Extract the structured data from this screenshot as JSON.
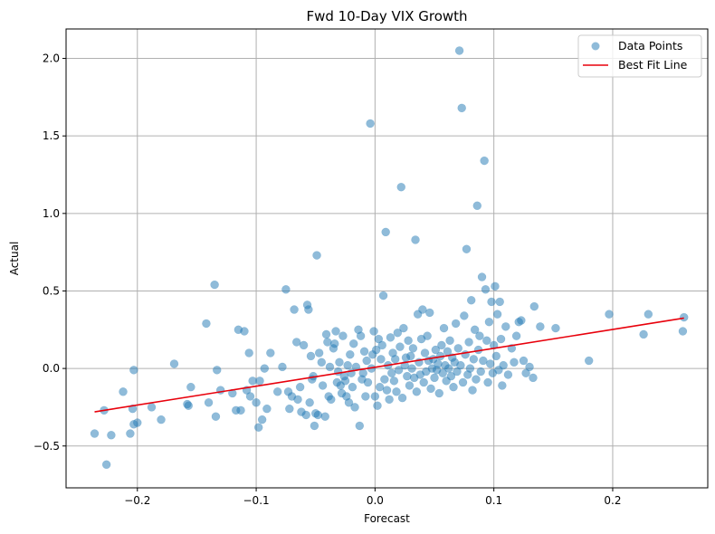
{
  "chart_data": {
    "type": "scatter",
    "title": "Fwd 10-Day VIX Growth",
    "xlabel": "Forecast",
    "ylabel": "Actual",
    "xlim": [
      -0.26,
      0.28
    ],
    "ylim": [
      -0.77,
      2.19
    ],
    "xticks": [
      -0.2,
      -0.1,
      0.0,
      0.1,
      0.2
    ],
    "xtick_labels": [
      "−0.2",
      "−0.1",
      "0.0",
      "0.1",
      "0.2"
    ],
    "yticks": [
      -0.5,
      0.0,
      0.5,
      1.0,
      1.5,
      2.0
    ],
    "ytick_labels": [
      "−0.5",
      "0.0",
      "0.5",
      "1.0",
      "1.5",
      "2.0"
    ],
    "grid": true,
    "legend_position": "top-right",
    "series": [
      {
        "name": "Data Points",
        "kind": "scatter",
        "color": "#1f77b4",
        "opacity": 0.5,
        "points": [
          [
            -0.236,
            -0.42
          ],
          [
            -0.228,
            -0.27
          ],
          [
            -0.226,
            -0.62
          ],
          [
            -0.222,
            -0.43
          ],
          [
            -0.212,
            -0.15
          ],
          [
            -0.206,
            -0.42
          ],
          [
            -0.204,
            -0.26
          ],
          [
            -0.203,
            -0.01
          ],
          [
            -0.203,
            -0.36
          ],
          [
            -0.2,
            -0.35
          ],
          [
            -0.188,
            -0.25
          ],
          [
            -0.18,
            -0.33
          ],
          [
            -0.169,
            0.03
          ],
          [
            -0.158,
            -0.23
          ],
          [
            -0.157,
            -0.24
          ],
          [
            -0.155,
            -0.12
          ],
          [
            -0.142,
            0.29
          ],
          [
            -0.14,
            -0.22
          ],
          [
            -0.135,
            0.54
          ],
          [
            -0.134,
            -0.31
          ],
          [
            -0.133,
            -0.01
          ],
          [
            -0.13,
            -0.14
          ],
          [
            -0.12,
            -0.16
          ],
          [
            -0.117,
            -0.27
          ],
          [
            -0.115,
            0.25
          ],
          [
            -0.113,
            -0.27
          ],
          [
            -0.11,
            0.24
          ],
          [
            -0.108,
            -0.14
          ],
          [
            -0.106,
            0.1
          ],
          [
            -0.105,
            -0.18
          ],
          [
            -0.103,
            -0.08
          ],
          [
            -0.1,
            -0.22
          ],
          [
            -0.098,
            -0.38
          ],
          [
            -0.097,
            -0.08
          ],
          [
            -0.095,
            -0.33
          ],
          [
            -0.093,
            0.0
          ],
          [
            -0.091,
            -0.26
          ],
          [
            -0.088,
            0.1
          ],
          [
            -0.082,
            -0.15
          ],
          [
            -0.078,
            0.01
          ],
          [
            -0.075,
            0.51
          ],
          [
            -0.073,
            -0.15
          ],
          [
            -0.072,
            -0.26
          ],
          [
            -0.07,
            -0.18
          ],
          [
            -0.068,
            0.38
          ],
          [
            -0.066,
            0.17
          ],
          [
            -0.065,
            -0.2
          ],
          [
            -0.063,
            -0.12
          ],
          [
            -0.062,
            -0.28
          ],
          [
            -0.06,
            0.15
          ],
          [
            -0.058,
            -0.3
          ],
          [
            -0.057,
            0.41
          ],
          [
            -0.056,
            0.38
          ],
          [
            -0.055,
            -0.22
          ],
          [
            -0.054,
            0.08
          ],
          [
            -0.053,
            -0.07
          ],
          [
            -0.052,
            -0.05
          ],
          [
            -0.051,
            -0.37
          ],
          [
            -0.05,
            -0.29
          ],
          [
            -0.049,
            0.73
          ],
          [
            -0.048,
            -0.3
          ],
          [
            -0.047,
            0.1
          ],
          [
            -0.045,
            0.04
          ],
          [
            -0.044,
            -0.11
          ],
          [
            -0.042,
            -0.31
          ],
          [
            -0.041,
            0.22
          ],
          [
            -0.04,
            0.17
          ],
          [
            -0.039,
            -0.18
          ],
          [
            -0.038,
            0.01
          ],
          [
            -0.037,
            -0.2
          ],
          [
            -0.035,
            0.13
          ],
          [
            -0.034,
            0.16
          ],
          [
            -0.033,
            0.24
          ],
          [
            -0.032,
            -0.09
          ],
          [
            -0.031,
            -0.02
          ],
          [
            -0.03,
            0.04
          ],
          [
            -0.029,
            -0.11
          ],
          [
            -0.028,
            -0.16
          ],
          [
            -0.027,
            0.21
          ],
          [
            -0.026,
            -0.05
          ],
          [
            -0.025,
            -0.08
          ],
          [
            -0.024,
            -0.18
          ],
          [
            -0.023,
            0.02
          ],
          [
            -0.022,
            -0.22
          ],
          [
            -0.021,
            0.09
          ],
          [
            -0.02,
            -0.03
          ],
          [
            -0.019,
            -0.12
          ],
          [
            -0.018,
            0.16
          ],
          [
            -0.017,
            -0.25
          ],
          [
            -0.016,
            0.01
          ],
          [
            -0.014,
            0.25
          ],
          [
            -0.013,
            -0.37
          ],
          [
            -0.012,
            0.21
          ],
          [
            -0.011,
            -0.07
          ],
          [
            -0.01,
            -0.03
          ],
          [
            -0.009,
            0.11
          ],
          [
            -0.008,
            -0.18
          ],
          [
            -0.007,
            0.05
          ],
          [
            -0.006,
            -0.09
          ],
          [
            -0.004,
            1.58
          ],
          [
            -0.003,
            0.0
          ],
          [
            -0.002,
            0.09
          ],
          [
            -0.001,
            0.24
          ],
          [
            0.0,
            -0.18
          ],
          [
            0.001,
            0.12
          ],
          [
            0.002,
            -0.24
          ],
          [
            0.003,
            0.19
          ],
          [
            0.004,
            -0.12
          ],
          [
            0.005,
            0.06
          ],
          [
            0.006,
            0.15
          ],
          [
            0.007,
            0.47
          ],
          [
            0.008,
            -0.07
          ],
          [
            0.009,
            0.88
          ],
          [
            0.01,
            -0.14
          ],
          [
            0.011,
            0.02
          ],
          [
            0.012,
            -0.2
          ],
          [
            0.013,
            0.2
          ],
          [
            0.014,
            -0.03
          ],
          [
            0.015,
            0.1
          ],
          [
            0.016,
            -0.08
          ],
          [
            0.017,
            0.06
          ],
          [
            0.018,
            -0.15
          ],
          [
            0.019,
            0.23
          ],
          [
            0.02,
            -0.01
          ],
          [
            0.021,
            0.14
          ],
          [
            0.022,
            1.17
          ],
          [
            0.023,
            -0.19
          ],
          [
            0.024,
            0.26
          ],
          [
            0.025,
            0.02
          ],
          [
            0.026,
            0.07
          ],
          [
            0.027,
            -0.05
          ],
          [
            0.028,
            0.18
          ],
          [
            0.029,
            -0.11
          ],
          [
            0.03,
            0.08
          ],
          [
            0.031,
            0.0
          ],
          [
            0.032,
            0.13
          ],
          [
            0.033,
            -0.06
          ],
          [
            0.034,
            0.83
          ],
          [
            0.035,
            -0.15
          ],
          [
            0.036,
            0.35
          ],
          [
            0.037,
            0.04
          ],
          [
            0.038,
            -0.04
          ],
          [
            0.039,
            0.19
          ],
          [
            0.04,
            0.38
          ],
          [
            0.041,
            -0.09
          ],
          [
            0.042,
            0.1
          ],
          [
            0.043,
            -0.02
          ],
          [
            0.044,
            0.21
          ],
          [
            0.045,
            0.05
          ],
          [
            0.046,
            0.36
          ],
          [
            0.047,
            -0.13
          ],
          [
            0.048,
            0.0
          ],
          [
            0.049,
            0.06
          ],
          [
            0.05,
            -0.06
          ],
          [
            0.051,
            0.12
          ],
          [
            0.052,
            -0.01
          ],
          [
            0.053,
            0.03
          ],
          [
            0.054,
            -0.16
          ],
          [
            0.055,
            0.08
          ],
          [
            0.056,
            0.15
          ],
          [
            0.057,
            -0.03
          ],
          [
            0.058,
            0.26
          ],
          [
            0.059,
            0.02
          ],
          [
            0.06,
            -0.08
          ],
          [
            0.061,
            0.11
          ],
          [
            0.062,
            0.0
          ],
          [
            0.063,
            0.18
          ],
          [
            0.064,
            -0.05
          ],
          [
            0.065,
            0.07
          ],
          [
            0.066,
            -0.12
          ],
          [
            0.067,
            0.04
          ],
          [
            0.068,
            0.29
          ],
          [
            0.069,
            -0.02
          ],
          [
            0.07,
            0.13
          ],
          [
            0.071,
            2.05
          ],
          [
            0.072,
            0.02
          ],
          [
            0.073,
            1.68
          ],
          [
            0.074,
            -0.09
          ],
          [
            0.075,
            0.34
          ],
          [
            0.076,
            0.09
          ],
          [
            0.077,
            0.77
          ],
          [
            0.078,
            -0.04
          ],
          [
            0.079,
            0.17
          ],
          [
            0.08,
            0.0
          ],
          [
            0.081,
            0.44
          ],
          [
            0.082,
            -0.14
          ],
          [
            0.083,
            0.06
          ],
          [
            0.084,
            0.25
          ],
          [
            0.085,
            -0.07
          ],
          [
            0.086,
            1.05
          ],
          [
            0.087,
            0.12
          ],
          [
            0.088,
            0.21
          ],
          [
            0.089,
            -0.02
          ],
          [
            0.09,
            0.59
          ],
          [
            0.091,
            0.05
          ],
          [
            0.092,
            1.34
          ],
          [
            0.093,
            0.51
          ],
          [
            0.094,
            0.18
          ],
          [
            0.095,
            -0.09
          ],
          [
            0.096,
            0.3
          ],
          [
            0.097,
            0.03
          ],
          [
            0.098,
            0.43
          ],
          [
            0.099,
            -0.03
          ],
          [
            0.1,
            0.15
          ],
          [
            0.101,
            0.53
          ],
          [
            0.102,
            0.08
          ],
          [
            0.103,
            0.35
          ],
          [
            0.104,
            -0.01
          ],
          [
            0.105,
            0.43
          ],
          [
            0.106,
            0.19
          ],
          [
            0.107,
            -0.11
          ],
          [
            0.108,
            0.02
          ],
          [
            0.11,
            0.27
          ],
          [
            0.112,
            -0.04
          ],
          [
            0.115,
            0.13
          ],
          [
            0.117,
            0.04
          ],
          [
            0.119,
            0.21
          ],
          [
            0.121,
            0.3
          ],
          [
            0.123,
            0.31
          ],
          [
            0.125,
            0.05
          ],
          [
            0.127,
            -0.03
          ],
          [
            0.13,
            0.01
          ],
          [
            0.133,
            -0.06
          ],
          [
            0.134,
            0.4
          ],
          [
            0.139,
            0.27
          ],
          [
            0.152,
            0.26
          ],
          [
            0.18,
            0.05
          ],
          [
            0.197,
            0.35
          ],
          [
            0.226,
            0.22
          ],
          [
            0.23,
            0.35
          ],
          [
            0.259,
            0.24
          ],
          [
            0.26,
            0.33
          ]
        ]
      },
      {
        "name": "Best Fit Line",
        "kind": "line",
        "color": "#e8000b",
        "points": [
          [
            -0.236,
            -0.28
          ],
          [
            0.26,
            0.325
          ]
        ]
      }
    ]
  }
}
